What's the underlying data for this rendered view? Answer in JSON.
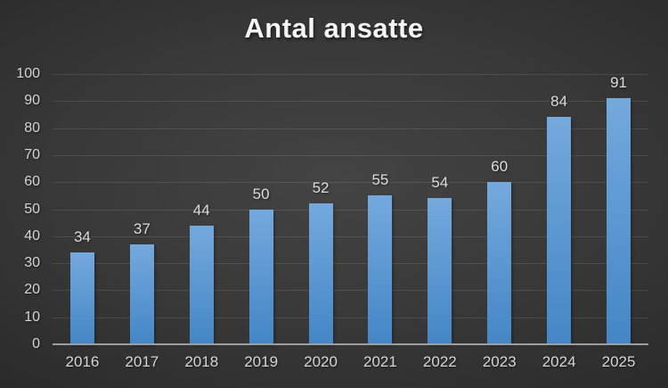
{
  "chart_data": {
    "type": "bar",
    "title": "Antal ansatte",
    "categories": [
      "2016",
      "2017",
      "2018",
      "2019",
      "2020",
      "2021",
      "2022",
      "2023",
      "2024",
      "2025"
    ],
    "values": [
      34,
      37,
      44,
      50,
      52,
      55,
      54,
      60,
      84,
      91
    ],
    "xlabel": "",
    "ylabel": "",
    "ylim": [
      0,
      100
    ],
    "ytick_step": 10,
    "grid": true,
    "legend_position": "none",
    "data_label_position": "outside-end",
    "colors": {
      "bar_top": "#74A9DD",
      "bar_bottom": "#4486C6",
      "title_text": "#F5F5F5",
      "axis_text": "#D5D5D5",
      "data_label_text": "#DCDCDC",
      "gridline": "rgba(255,255,255,0.10)",
      "baseline": "#9E9E9E",
      "background_center": "#444444",
      "background_mid": "#383838",
      "background_edge": "#242424"
    }
  }
}
